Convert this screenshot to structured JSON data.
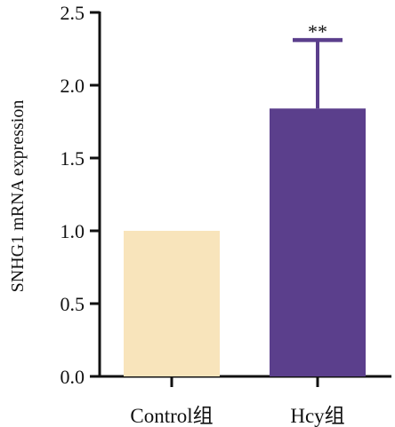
{
  "chart_data": {
    "type": "bar",
    "categories": [
      "Control组",
      "Hcy组"
    ],
    "values": [
      1.0,
      1.84
    ],
    "errors": [
      0,
      0.47
    ],
    "annotations": [
      "",
      "**"
    ],
    "ylabel": "SNHG1 mRNA expression",
    "xlabel": "",
    "ylim": [
      0,
      2.5
    ],
    "yticks": [
      0.0,
      0.5,
      1.0,
      1.5,
      2.0,
      2.5
    ],
    "ytick_labels": [
      "0.0",
      "0.5",
      "1.0",
      "1.5",
      "2.0",
      "2.5"
    ],
    "colors": [
      "#f8e4bb",
      "#5b3f8c"
    ],
    "axis_color": "#111111",
    "grid": false
  }
}
